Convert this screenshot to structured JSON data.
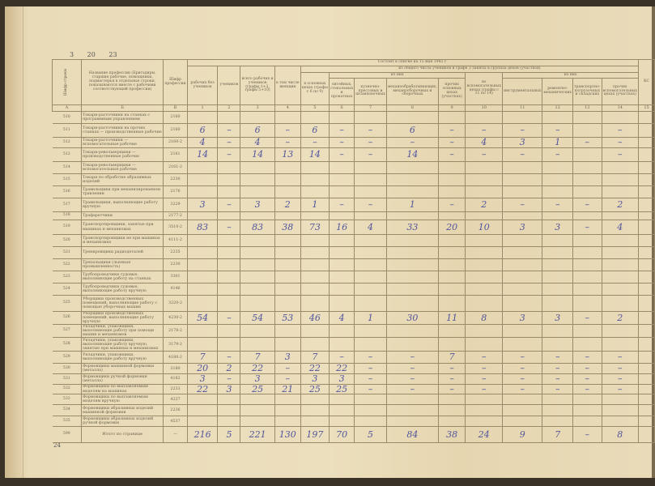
{
  "document": {
    "top_numbers": "3 20 23",
    "page_number": "24",
    "headers": {
      "row_code": "Шифр строки",
      "profession": "Название профессии (Бригадиры, старшие рабочие, помощники, подмастерья в отдельные строки, показываются вместе с рабочими соответствующей профессии)",
      "profession_code": "Шифр профессии",
      "as_of": "Состоит в списке на 15 мая 1982 г.",
      "groups_note": "из общего числа учеников и графе 3 заняты в группах цехов (участков)",
      "of_them_main": "из них",
      "of_them_aux": "из них",
      "c1": "рабочих без учеников",
      "c2": "учеников",
      "c3": "всего рабочих и учеников (графы 1+2, графы 5+10)",
      "c4": "в том числе женщин",
      "c5": "в основных цехах (графы с 6 по 9)",
      "c6": "литейных, стекольных и прокатных",
      "c7": "кузнечно-прессовых и штамповочных",
      "c8": "механообрабатывающих, механосборочных и сборочных",
      "c9": "прочих основных цехах (участках)",
      "c10": "во вспомогательных цехах (графы с 11 по 14)",
      "c11": "инструментальных",
      "c12": "ремонтно-механических",
      "c13": "транспортно-погрузочных и складских",
      "c14": "прочих вспомогательных цехах (участках)",
      "c15": "КС"
    },
    "column_numbers": [
      "А",
      "Б",
      "В",
      "1",
      "2",
      "3",
      "4",
      "5",
      "6",
      "7",
      "8",
      "9",
      "10",
      "11",
      "12",
      "13",
      "14",
      "15"
    ],
    "rows": [
      {
        "row": "510",
        "name": "Токари-расточники на станках с программным управлением",
        "code": "2160",
        "values": [
          "",
          "",
          "",
          "",
          "",
          "",
          "",
          "",
          "",
          "",
          "",
          "",
          "",
          "",
          ""
        ]
      },
      {
        "row": "511",
        "name": "Токари-расточники на прочих станках — производственные рабочие",
        "code": "2160",
        "values": [
          "6",
          "–",
          "6",
          "–",
          "6",
          "–",
          "–",
          "6",
          "–",
          "–",
          "–",
          "–",
          "",
          "–",
          ""
        ]
      },
      {
        "row": "512",
        "name": "Токари-расточники — вспомогательные рабочие",
        "code": "2160-2",
        "values": [
          "4",
          "–",
          "4",
          "–",
          "–",
          "–",
          "–",
          "–",
          "–",
          "4",
          "3",
          "1",
          "–",
          "–",
          ""
        ]
      },
      {
        "row": "513",
        "name": "Токари-револьверщики — производственные рабочие",
        "code": "2161",
        "values": [
          "14",
          "–",
          "14",
          "13",
          "14",
          "–",
          "–",
          "14",
          "–",
          "–",
          "–",
          "–",
          "",
          "–",
          ""
        ]
      },
      {
        "row": "514",
        "name": "Токари-револьверщики — вспомогательные рабочие",
        "code": "2161-2",
        "values": [
          "",
          "",
          "",
          "",
          "",
          "",
          "",
          "",
          "",
          "",
          "",
          "",
          "",
          "",
          ""
        ]
      },
      {
        "row": "515",
        "name": "Токари по обработке абразивных изделий",
        "code": "2230",
        "values": [
          "",
          "",
          "",
          "",
          "",
          "",
          "",
          "",
          "",
          "",
          "",
          "",
          "",
          "",
          ""
        ]
      },
      {
        "row": "516",
        "name": "Травильщики при механизированном травлении",
        "code": "2176",
        "values": [
          "",
          "",
          "",
          "",
          "",
          "",
          "",
          "",
          "",
          "",
          "",
          "",
          "",
          "",
          ""
        ]
      },
      {
        "row": "517",
        "name": "Травильщики, выполняющие работу вручную",
        "code": "3229",
        "values": [
          "3",
          "–",
          "3",
          "2",
          "1",
          "–",
          "–",
          "1",
          "–",
          "2",
          "–",
          "–",
          "–",
          "2",
          ""
        ]
      },
      {
        "row": "518",
        "name": "Трафаретчики",
        "code": "2177-2",
        "values": [
          "",
          "",
          "",
          "",
          "",
          "",
          "",
          "",
          "",
          "",
          "",
          "",
          "",
          "",
          ""
        ]
      },
      {
        "row": "519",
        "name": "Транспортировщики, занятые при машинах и механизмах",
        "code": "3510-2",
        "values": [
          "83",
          "–",
          "83",
          "38",
          "73",
          "16",
          "4",
          "33",
          "20",
          "10",
          "3",
          "3",
          "–",
          "4",
          ""
        ]
      },
      {
        "row": "520",
        "name": "Транспортировщики не при машинах и механизмах",
        "code": "4111-2",
        "values": [
          "",
          "",
          "",
          "",
          "",
          "",
          "",
          "",
          "",
          "",
          "",
          "",
          "",
          "",
          ""
        ]
      },
      {
        "row": "521",
        "name": "Тренировщики радиодеталей",
        "code": "2235",
        "values": [
          "",
          "",
          "",
          "",
          "",
          "",
          "",
          "",
          "",
          "",
          "",
          "",
          "",
          "",
          ""
        ]
      },
      {
        "row": "522",
        "name": "Трепальщики (льняная промышленность)",
        "code": "2230",
        "values": [
          "",
          "",
          "",
          "",
          "",
          "",
          "",
          "",
          "",
          "",
          "",
          "",
          "",
          "",
          ""
        ]
      },
      {
        "row": "523",
        "name": "Трубопроводчики судовые, выполняющие работу на станках",
        "code": "3301",
        "values": [
          "",
          "",
          "",
          "",
          "",
          "",
          "",
          "",
          "",
          "",
          "",
          "",
          "",
          "",
          ""
        ]
      },
      {
        "row": "524",
        "name": "Трубопроводчики судовые, выполняющие работу вручную",
        "code": "4146",
        "values": [
          "",
          "",
          "",
          "",
          "",
          "",
          "",
          "",
          "",
          "",
          "",
          "",
          "",
          "",
          ""
        ]
      },
      {
        "row": "525",
        "name": "Уборщики производственных помещений, выполняющие работу с помощью уборочных машин",
        "code": "3220-2",
        "values": [
          "",
          "",
          "",
          "",
          "",
          "",
          "",
          "",
          "",
          "",
          "",
          "",
          "",
          "",
          ""
        ]
      },
      {
        "row": "526",
        "name": "Уборщики производственных помещений, выполняющие работу вручную",
        "code": "4230-2",
        "values": [
          "54",
          "–",
          "54",
          "53",
          "46",
          "4",
          "1",
          "30",
          "11",
          "8",
          "3",
          "3",
          "–",
          "2",
          ""
        ]
      },
      {
        "row": "527",
        "name": "Укладчики, упаковщики, выполняющие работу при помощи машин и механизмов",
        "code": "2178-2",
        "values": [
          "",
          "",
          "",
          "",
          "",
          "",
          "",
          "",
          "",
          "",
          "",
          "",
          "",
          "",
          ""
        ]
      },
      {
        "row": "528",
        "name": "Укладчики, упаковщики, выполняющие работу вручную, занятые при машинах и механизмах",
        "code": "3179-2",
        "values": [
          "",
          "",
          "",
          "",
          "",
          "",
          "",
          "",
          "",
          "",
          "",
          "",
          "",
          "",
          ""
        ]
      },
      {
        "row": "529",
        "name": "Укладчики, упаковщики, выполняющие работу вручную",
        "code": "4180-2",
        "values": [
          "7",
          "–",
          "7",
          "3",
          "7",
          "–",
          "–",
          "–",
          "7",
          "–",
          "–",
          "–",
          "–",
          "–",
          ""
        ]
      },
      {
        "row": "530",
        "name": "Формовщики машинной формовки (металла)",
        "code": "3180",
        "values": [
          "20",
          "2",
          "22",
          "–",
          "22",
          "22",
          "–",
          "–",
          "–",
          "–",
          "–",
          "–",
          "–",
          "–",
          ""
        ]
      },
      {
        "row": "531",
        "name": "Формовщики ручной формовки (металла)",
        "code": "4182",
        "values": [
          "3",
          "–",
          "3",
          "–",
          "3",
          "3",
          "–",
          "–",
          "–",
          "–",
          "–",
          "–",
          "–",
          "–",
          ""
        ]
      },
      {
        "row": "532",
        "name": "Формовщики по выплавляемым моделям на машинах",
        "code": "2233",
        "values": [
          "22",
          "3",
          "25",
          "21",
          "25",
          "25",
          "–",
          "–",
          "–",
          "–",
          "–",
          "–",
          "–",
          "–",
          ""
        ]
      },
      {
        "row": "533",
        "name": "Формовщики по выплавляемым моделям вручную",
        "code": "4237",
        "values": [
          "",
          "",
          "",
          "",
          "",
          "",
          "",
          "",
          "",
          "",
          "",
          "",
          "",
          "",
          ""
        ]
      },
      {
        "row": "534",
        "name": "Формовщики абразивных изделий машинной формовки",
        "code": "2236",
        "values": [
          "",
          "",
          "",
          "",
          "",
          "",
          "",
          "",
          "",
          "",
          "",
          "",
          "",
          "",
          ""
        ]
      },
      {
        "row": "535",
        "name": "Формовщики абразивных изделий ручной формовки",
        "code": "4537",
        "values": [
          "",
          "",
          "",
          "",
          "",
          "",
          "",
          "",
          "",
          "",
          "",
          "",
          "",
          "",
          ""
        ]
      },
      {
        "row": "599",
        "name": "Итого по странице",
        "code": "—",
        "values": [
          "216",
          "5",
          "221",
          "130",
          "197",
          "70",
          "5",
          "84",
          "38",
          "24",
          "9",
          "7",
          "–",
          "8",
          ""
        ]
      }
    ]
  }
}
